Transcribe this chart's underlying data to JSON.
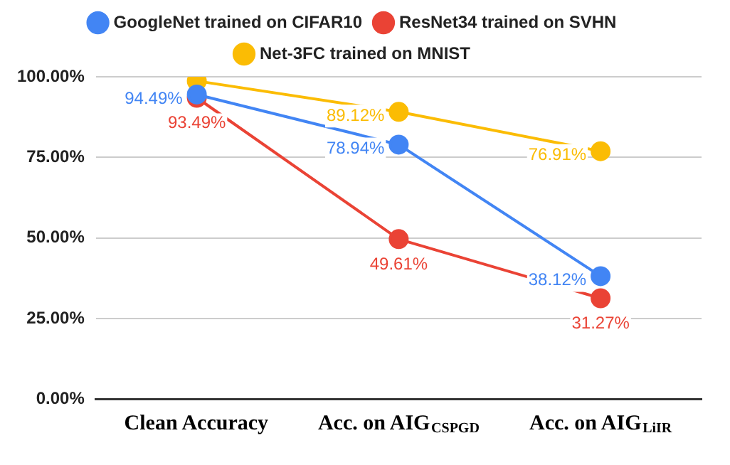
{
  "chart_data": {
    "type": "line",
    "categories": [
      "Clean Accuracy",
      "Acc. on AIG$_{CSPGD}$",
      "Acc. on AIG$_{LiIR}$"
    ],
    "series": [
      {
        "name": "GoogleNet trained on CIFAR10",
        "color": "#4285f4",
        "values": [
          94.49,
          78.94,
          38.12
        ],
        "value_labels": [
          "94.49%",
          "78.94%",
          "38.12%"
        ]
      },
      {
        "name": "ResNet34 trained on SVHN",
        "color": "#ea4335",
        "values": [
          93.49,
          49.61,
          31.27
        ],
        "value_labels": [
          "93.49%",
          "49.61%",
          "31.27%"
        ]
      },
      {
        "name": "Net-3FC trained on MNIST",
        "color": "#fbbc04",
        "values": [
          98.7,
          89.12,
          76.91
        ],
        "value_labels": [
          null,
          "89.12%",
          "76.91%"
        ]
      }
    ],
    "ylim": [
      0,
      100
    ],
    "yticks": [
      {
        "value": 0,
        "label": "0.00%"
      },
      {
        "value": 25,
        "label": "25.00%"
      },
      {
        "value": 50,
        "label": "50.00%"
      },
      {
        "value": 75,
        "label": "75.00%"
      },
      {
        "value": 100,
        "label": "100.00%"
      }
    ],
    "grid": "y",
    "legend": "top",
    "marker": "circle",
    "line_style": "solid"
  }
}
